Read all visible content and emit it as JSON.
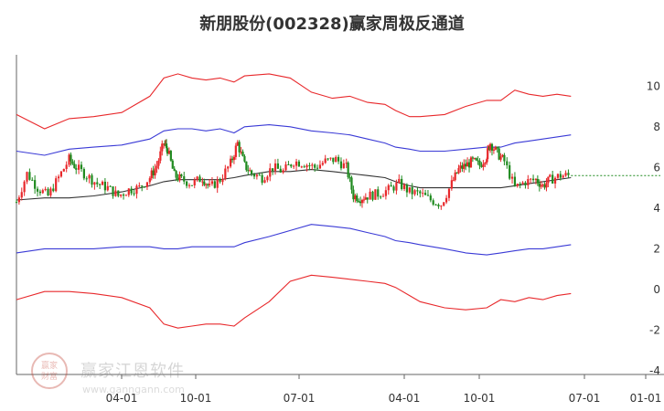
{
  "chart_data": {
    "type": "line",
    "title": "新朋股份(002328)赢家周极反通道",
    "xlabel": "",
    "ylabel": "",
    "ylim": [
      -4,
      11
    ],
    "y_ticks": [
      10,
      8,
      6,
      4,
      2,
      0,
      -2,
      -4
    ],
    "x_ticks": [
      "04-01",
      "10-01",
      "07-01",
      "04-01",
      "10-01",
      "07-01",
      "01-01"
    ],
    "grid": false,
    "legend": "none",
    "colors": {
      "outer_band": "#e8282b",
      "inner_band": "#3a3ad6",
      "mid_line": "#333333",
      "candle_up": "#e8282b",
      "candle_down": "#1f8a1f",
      "last_price_line": "#1f8a1f"
    },
    "x_range": [
      0,
      160
    ],
    "series": [
      {
        "role": "outer_upper",
        "x": [
          0,
          8,
          15,
          22,
          30,
          38,
          42,
          46,
          50,
          54,
          58,
          62,
          65,
          72,
          78,
          84,
          90,
          95,
          100,
          105,
          108,
          112,
          115,
          122,
          128,
          134,
          138,
          142,
          146,
          150,
          154,
          158
        ],
        "values": [
          8.6,
          7.9,
          8.4,
          8.5,
          8.7,
          9.5,
          10.4,
          10.6,
          10.4,
          10.3,
          10.4,
          10.2,
          10.5,
          10.6,
          10.4,
          9.7,
          9.4,
          9.5,
          9.2,
          9.1,
          8.8,
          8.5,
          8.5,
          8.6,
          9.0,
          9.3,
          9.3,
          9.8,
          9.6,
          9.5,
          9.6,
          9.5
        ]
      },
      {
        "role": "inner_upper",
        "x": [
          0,
          8,
          15,
          22,
          30,
          38,
          42,
          46,
          50,
          54,
          58,
          62,
          65,
          72,
          78,
          84,
          90,
          95,
          100,
          105,
          108,
          112,
          115,
          122,
          128,
          134,
          138,
          142,
          146,
          150,
          154,
          158
        ],
        "values": [
          6.8,
          6.6,
          6.9,
          7.0,
          7.1,
          7.4,
          7.8,
          7.9,
          7.9,
          7.8,
          7.9,
          7.7,
          8.0,
          8.1,
          8.0,
          7.8,
          7.7,
          7.6,
          7.4,
          7.2,
          7.0,
          6.9,
          6.8,
          6.8,
          6.9,
          7.0,
          7.0,
          7.2,
          7.3,
          7.4,
          7.5,
          7.6
        ]
      },
      {
        "role": "mid",
        "x": [
          0,
          8,
          15,
          22,
          30,
          38,
          42,
          46,
          50,
          54,
          58,
          62,
          65,
          72,
          78,
          84,
          90,
          95,
          100,
          105,
          108,
          112,
          115,
          122,
          128,
          134,
          138,
          142,
          146,
          150,
          154,
          158
        ],
        "values": [
          4.4,
          4.5,
          4.5,
          4.6,
          4.8,
          5.1,
          5.3,
          5.4,
          5.4,
          5.4,
          5.4,
          5.5,
          5.6,
          5.8,
          5.8,
          5.9,
          5.8,
          5.7,
          5.6,
          5.5,
          5.3,
          5.1,
          5.0,
          5.0,
          5.0,
          5.0,
          5.0,
          5.1,
          5.2,
          5.3,
          5.4,
          5.5
        ]
      },
      {
        "role": "inner_lower",
        "x": [
          0,
          8,
          15,
          22,
          30,
          38,
          42,
          46,
          50,
          54,
          58,
          62,
          65,
          72,
          78,
          84,
          90,
          95,
          100,
          105,
          108,
          112,
          115,
          122,
          128,
          134,
          138,
          142,
          146,
          150,
          154,
          158
        ],
        "values": [
          1.8,
          2.0,
          2.0,
          2.0,
          2.1,
          2.1,
          2.0,
          2.0,
          2.1,
          2.1,
          2.1,
          2.1,
          2.3,
          2.6,
          2.9,
          3.2,
          3.1,
          3.0,
          2.8,
          2.6,
          2.4,
          2.3,
          2.2,
          2.0,
          1.8,
          1.7,
          1.8,
          1.9,
          2.0,
          2.0,
          2.1,
          2.2
        ]
      },
      {
        "role": "outer_lower",
        "x": [
          0,
          8,
          15,
          22,
          30,
          38,
          42,
          46,
          50,
          54,
          58,
          62,
          65,
          72,
          78,
          84,
          90,
          95,
          100,
          105,
          108,
          112,
          115,
          122,
          128,
          134,
          138,
          142,
          146,
          150,
          154,
          158
        ],
        "values": [
          -0.5,
          -0.1,
          -0.1,
          -0.2,
          -0.4,
          -0.9,
          -1.7,
          -1.9,
          -1.8,
          -1.7,
          -1.7,
          -1.8,
          -1.4,
          -0.6,
          0.4,
          0.7,
          0.6,
          0.5,
          0.4,
          0.3,
          0.1,
          -0.3,
          -0.6,
          -0.9,
          -1.0,
          -0.9,
          -0.5,
          -0.6,
          -0.4,
          -0.5,
          -0.3,
          -0.2
        ]
      },
      {
        "role": "close",
        "x": [
          0,
          3,
          6,
          9,
          12,
          15,
          17,
          20,
          23,
          26,
          29,
          32,
          35,
          38,
          40,
          42,
          43,
          45,
          47,
          50,
          53,
          55,
          58,
          61,
          63,
          65,
          67,
          70,
          73,
          76,
          79,
          82,
          85,
          88,
          91,
          94,
          96,
          98,
          100,
          103,
          106,
          109,
          112,
          115,
          118,
          121,
          124,
          126,
          128,
          130,
          132,
          134,
          135,
          137,
          139,
          142,
          145,
          148,
          150,
          152,
          155,
          158
        ],
        "values": [
          4.3,
          5.7,
          5.0,
          4.6,
          5.5,
          6.4,
          6.0,
          5.6,
          5.2,
          5.0,
          4.6,
          4.9,
          5.0,
          5.5,
          6.1,
          7.2,
          6.9,
          5.6,
          5.4,
          5.2,
          5.5,
          5.0,
          5.4,
          6.2,
          7.2,
          6.1,
          5.7,
          5.5,
          6.0,
          5.8,
          6.3,
          6.2,
          6.0,
          6.3,
          6.4,
          6.0,
          4.6,
          4.5,
          4.6,
          4.7,
          4.9,
          5.2,
          4.8,
          4.7,
          4.4,
          4.2,
          5.2,
          5.9,
          6.1,
          6.3,
          6.1,
          6.6,
          7.2,
          6.7,
          6.3,
          5.0,
          5.3,
          5.4,
          5.1,
          5.4,
          5.6,
          5.6
        ]
      }
    ]
  }
}
